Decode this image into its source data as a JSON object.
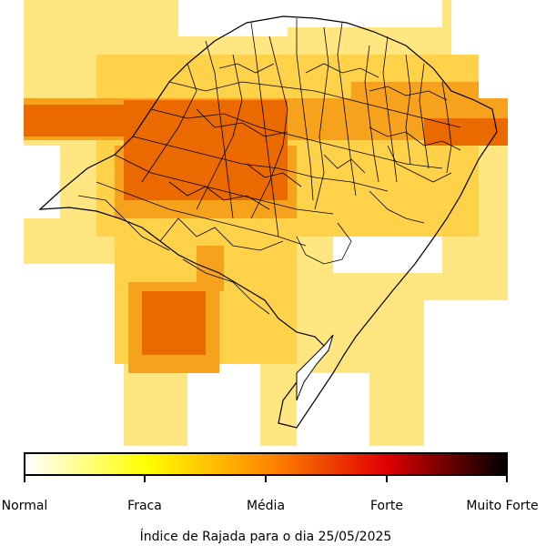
{
  "caption": "Índice de Rajada para o dia 25/05/2025",
  "legend": {
    "labels": [
      "Normal",
      "Fraca",
      "Média",
      "Forte",
      "Muito Forte"
    ],
    "gradient_colors": [
      "#ffffff",
      "#ffff00",
      "#ff8c00",
      "#e00000",
      "#000000"
    ]
  },
  "map": {
    "region": "Rio Grande do Sul",
    "base_color": "#ffe680",
    "zone_colors": {
      "normal": "#ffffff",
      "light": "#ffd24a",
      "medium": "#f7a21c",
      "strong": "#ea6a00"
    }
  }
}
